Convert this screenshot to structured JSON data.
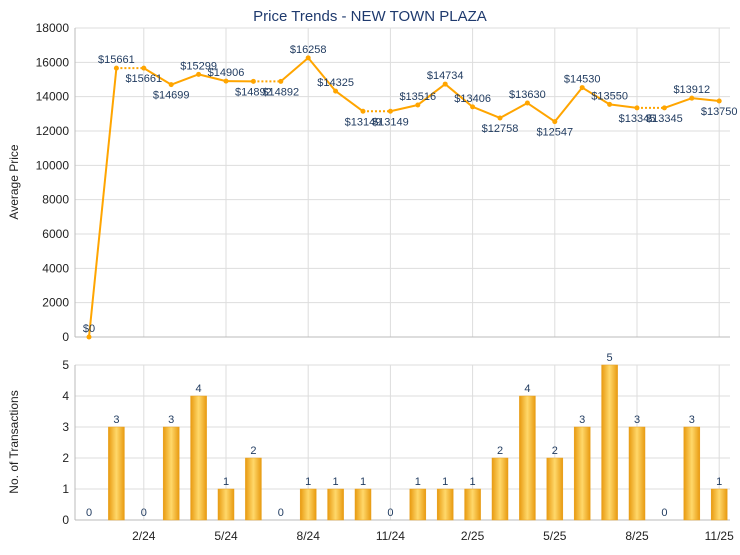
{
  "chart_data": [
    {
      "type": "line",
      "title": "Price Trends - NEW TOWN PLAZA",
      "ylabel": "Average Price",
      "ylim": [
        0,
        18000
      ],
      "yticks": [
        0,
        2000,
        4000,
        6000,
        8000,
        10000,
        12000,
        14000,
        16000,
        18000
      ],
      "grid": true,
      "x": [
        "12/23",
        "1/24",
        "2/24",
        "3/24",
        "4/24",
        "5/24",
        "6/24",
        "7/24",
        "8/24",
        "9/24",
        "10/24",
        "11/24",
        "12/24",
        "1/25",
        "2/25",
        "3/25",
        "4/25",
        "5/25",
        "6/25",
        "7/25",
        "8/25",
        "9/25",
        "10/25",
        "11/25"
      ],
      "values": [
        0,
        15661,
        15661,
        14699,
        15299,
        14906,
        14892,
        14892,
        16258,
        14325,
        13149,
        13149,
        13516,
        14734,
        13406,
        12758,
        13630,
        12547,
        14530,
        13550,
        13345,
        13345,
        13912,
        13750
      ],
      "labels": [
        "$0",
        "$15661",
        "$15661",
        "$14699",
        "$15299",
        "$14906",
        "$14892",
        "$14892",
        "$16258",
        "$14325",
        "$13149",
        "$13149",
        "$13516",
        "$14734",
        "$13406",
        "$12758",
        "$13630",
        "$12547",
        "$14530",
        "$13550",
        "$13345",
        "$13345",
        "$13912",
        "$13750"
      ],
      "color": "#FFA500",
      "label_color": "#1F3A5F"
    },
    {
      "type": "bar",
      "ylabel": "No. of Transactions",
      "ylim": [
        0,
        5
      ],
      "yticks": [
        0,
        1,
        2,
        3,
        4,
        5
      ],
      "grid": true,
      "x": [
        "12/23",
        "1/24",
        "2/24",
        "3/24",
        "4/24",
        "5/24",
        "6/24",
        "7/24",
        "8/24",
        "9/24",
        "10/24",
        "11/24",
        "12/24",
        "1/25",
        "2/25",
        "3/25",
        "4/25",
        "5/25",
        "6/25",
        "7/25",
        "8/25",
        "9/25",
        "10/25",
        "11/25"
      ],
      "values": [
        0,
        3,
        0,
        3,
        4,
        1,
        2,
        0,
        1,
        1,
        1,
        0,
        1,
        1,
        1,
        2,
        4,
        2,
        3,
        5,
        3,
        0,
        3,
        1
      ],
      "xtick_labels": [
        "2/24",
        "5/24",
        "8/24",
        "11/24",
        "2/25",
        "5/25",
        "8/25",
        "11/25"
      ],
      "color": "#F5B82E"
    }
  ]
}
